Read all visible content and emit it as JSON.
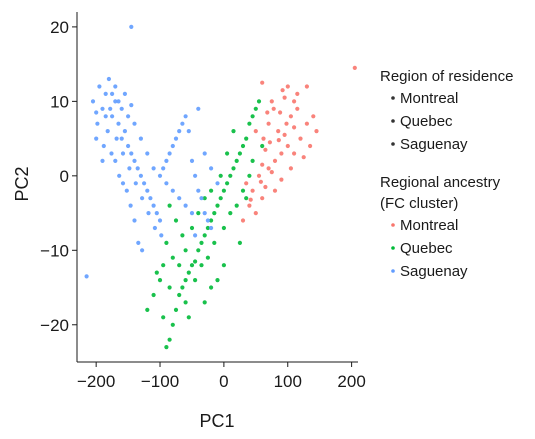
{
  "chart_data": {
    "type": "scatter",
    "xlabel": "PC1",
    "ylabel": "PC2",
    "xlim": [
      -230,
      210
    ],
    "ylim": [
      -25,
      22
    ],
    "xticks": [
      -200,
      -100,
      0,
      100,
      200
    ],
    "yticks": [
      -20,
      -10,
      0,
      10,
      20
    ],
    "xtick_labels": [
      "−200",
      "−100",
      "0",
      "100",
      "200"
    ],
    "ytick_labels": [
      "−20",
      "−10",
      "0",
      "10",
      "20"
    ],
    "grid": false,
    "legend_placement": "right",
    "legends": [
      {
        "title": "Region of residence",
        "entries": [
          {
            "label": "Montreal",
            "shape": "dot"
          },
          {
            "label": "Quebec",
            "shape": "triangle"
          },
          {
            "label": "Saguenay",
            "shape": "square"
          }
        ]
      },
      {
        "title": "Regional ancestry\n(FC cluster)",
        "entries": [
          {
            "label": "Montreal",
            "color": "#f8766d"
          },
          {
            "label": "Quebec",
            "color": "#00ba38"
          },
          {
            "label": "Saguenay",
            "color": "#619cff"
          }
        ]
      }
    ],
    "series": [
      {
        "name": "Montreal",
        "color": "#f8766d",
        "points": [
          [
            205,
            14.5
          ],
          [
            130,
            12
          ],
          [
            75,
            10
          ],
          [
            60,
            12.5
          ],
          [
            105,
            8
          ],
          [
            110,
            6.5
          ],
          [
            85,
            6
          ],
          [
            95,
            5.5
          ],
          [
            70,
            7
          ],
          [
            100,
            4
          ],
          [
            90,
            3
          ],
          [
            80,
            2
          ],
          [
            65,
            3.5
          ],
          [
            120,
            5
          ],
          [
            130,
            7
          ],
          [
            140,
            8
          ],
          [
            115,
            9
          ],
          [
            95,
            10.5
          ],
          [
            100,
            12
          ],
          [
            88,
            8.5
          ],
          [
            72,
            4.5
          ],
          [
            60,
            1.5
          ],
          [
            55,
            0
          ],
          [
            45,
            -2
          ],
          [
            40,
            -4
          ],
          [
            50,
            -5
          ],
          [
            30,
            -6
          ],
          [
            35,
            -1
          ],
          [
            65,
            -1.5
          ],
          [
            75,
            0.5
          ],
          [
            110,
            3
          ],
          [
            125,
            2.5
          ],
          [
            105,
            1
          ],
          [
            90,
            -0.5
          ],
          [
            80,
            -2
          ],
          [
            60,
            -3
          ],
          [
            50,
            6
          ],
          [
            62,
            5
          ],
          [
            115,
            11
          ],
          [
            78,
            9
          ],
          [
            98,
            7
          ],
          [
            86,
            4.8
          ],
          [
            70,
            1
          ],
          [
            58,
            -0.8
          ],
          [
            42,
            -3.2
          ],
          [
            135,
            4
          ],
          [
            145,
            6
          ],
          [
            110,
            10
          ],
          [
            92,
            11.5
          ],
          [
            68,
            8.5
          ]
        ]
      },
      {
        "name": "Quebec",
        "color": "#00ba38",
        "points": [
          [
            -90,
            -23
          ],
          [
            -85,
            -22
          ],
          [
            -80,
            -20
          ],
          [
            -75,
            -18
          ],
          [
            -70,
            -16
          ],
          [
            -65,
            -15
          ],
          [
            -60,
            -14
          ],
          [
            -55,
            -13
          ],
          [
            -50,
            -12
          ],
          [
            -45,
            -11.5
          ],
          [
            -40,
            -10
          ],
          [
            -35,
            -9
          ],
          [
            -30,
            -8
          ],
          [
            -25,
            -7
          ],
          [
            -20,
            -6
          ],
          [
            -15,
            -5
          ],
          [
            -10,
            -4
          ],
          [
            -5,
            -3
          ],
          [
            0,
            -2
          ],
          [
            5,
            -1
          ],
          [
            10,
            0
          ],
          [
            15,
            1
          ],
          [
            20,
            2
          ],
          [
            25,
            3
          ],
          [
            30,
            4
          ],
          [
            35,
            5
          ],
          [
            40,
            7
          ],
          [
            45,
            8
          ],
          [
            50,
            9
          ],
          [
            55,
            10
          ],
          [
            -60,
            -10
          ],
          [
            -70,
            -12
          ],
          [
            -80,
            -11
          ],
          [
            -95,
            -12
          ],
          [
            -100,
            -14
          ],
          [
            -110,
            -16
          ],
          [
            -120,
            -18
          ],
          [
            -50,
            -7
          ],
          [
            -40,
            -5
          ],
          [
            -30,
            -3
          ],
          [
            -60,
            -17
          ],
          [
            -45,
            -14
          ],
          [
            -35,
            -12
          ],
          [
            -25,
            -11
          ],
          [
            -15,
            -9
          ],
          [
            0,
            -7
          ],
          [
            10,
            -5
          ],
          [
            20,
            -4
          ],
          [
            30,
            -2
          ],
          [
            40,
            0
          ],
          [
            -5,
            0
          ],
          [
            -20,
            -2
          ],
          [
            -75,
            -6
          ],
          [
            -85,
            -4
          ],
          [
            -65,
            -8
          ],
          [
            -55,
            -19
          ],
          [
            -95,
            -19
          ],
          [
            -105,
            -13
          ],
          [
            5,
            3
          ],
          [
            15,
            6
          ],
          [
            25,
            -9
          ],
          [
            -10,
            -14
          ],
          [
            0,
            -12
          ],
          [
            -20,
            -15
          ],
          [
            -30,
            -17
          ],
          [
            45,
            2
          ],
          [
            35,
            -3
          ],
          [
            60,
            4
          ],
          [
            -90,
            -9
          ],
          [
            -85,
            -15
          ]
        ]
      },
      {
        "name": "Saguenay",
        "color": "#619cff",
        "points": [
          [
            -145,
            20
          ],
          [
            -215,
            -13.5
          ],
          [
            -205,
            10
          ],
          [
            -195,
            12
          ],
          [
            -190,
            9
          ],
          [
            -185,
            11
          ],
          [
            -180,
            13
          ],
          [
            -175,
            8
          ],
          [
            -170,
            10
          ],
          [
            -165,
            7
          ],
          [
            -160,
            5
          ],
          [
            -155,
            6
          ],
          [
            -150,
            4
          ],
          [
            -145,
            3
          ],
          [
            -140,
            2
          ],
          [
            -135,
            1
          ],
          [
            -130,
            0
          ],
          [
            -125,
            -1
          ],
          [
            -120,
            -2
          ],
          [
            -115,
            -3
          ],
          [
            -110,
            -4
          ],
          [
            -105,
            -5
          ],
          [
            -100,
            -6
          ],
          [
            -95,
            1
          ],
          [
            -90,
            2
          ],
          [
            -85,
            3
          ],
          [
            -80,
            4
          ],
          [
            -75,
            5
          ],
          [
            -70,
            6
          ],
          [
            -65,
            7
          ],
          [
            -60,
            8
          ],
          [
            -55,
            6
          ],
          [
            -50,
            2
          ],
          [
            -45,
            0
          ],
          [
            -40,
            -2
          ],
          [
            -35,
            -3
          ],
          [
            -30,
            -5
          ],
          [
            -25,
            -6
          ],
          [
            -20,
            -7
          ],
          [
            -200,
            5
          ],
          [
            -198,
            7
          ],
          [
            -188,
            4
          ],
          [
            -182,
            6
          ],
          [
            -176,
            3
          ],
          [
            -170,
            2
          ],
          [
            -164,
            0
          ],
          [
            -158,
            -1
          ],
          [
            -152,
            -2
          ],
          [
            -146,
            -4
          ],
          [
            -140,
            -6
          ],
          [
            -134,
            -9
          ],
          [
            -128,
            -10
          ],
          [
            -190,
            2
          ],
          [
            -170,
            12
          ],
          [
            -160,
            9
          ],
          [
            -150,
            8
          ],
          [
            -140,
            7
          ],
          [
            -130,
            5
          ],
          [
            -120,
            3
          ],
          [
            -110,
            1
          ],
          [
            -100,
            0
          ],
          [
            -90,
            -1
          ],
          [
            -80,
            -2
          ],
          [
            -70,
            -3
          ],
          [
            -60,
            -4
          ],
          [
            -50,
            -5
          ],
          [
            -178,
            9
          ],
          [
            -168,
            5
          ],
          [
            -158,
            3
          ],
          [
            -148,
            1
          ],
          [
            -138,
            -1
          ],
          [
            -128,
            -3
          ],
          [
            -118,
            -5
          ],
          [
            -108,
            -7
          ],
          [
            -98,
            -8
          ],
          [
            -200,
            8.5
          ],
          [
            -185,
            8
          ],
          [
            -175,
            11
          ],
          [
            -165,
            10
          ],
          [
            -155,
            11
          ],
          [
            -145,
            9.5
          ],
          [
            -45,
            -8
          ],
          [
            -40,
            9
          ],
          [
            -30,
            3
          ],
          [
            -20,
            1
          ],
          [
            -10,
            -1
          ]
        ]
      }
    ]
  }
}
